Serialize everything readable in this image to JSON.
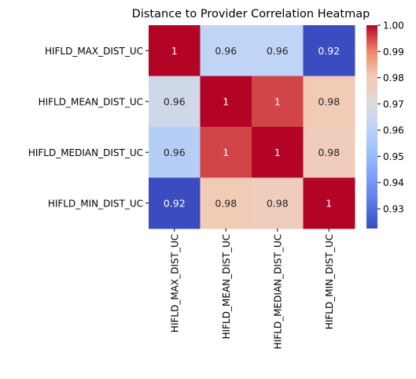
{
  "chart_data": {
    "type": "heatmap",
    "title": "Distance to Provider Correlation Heatmap",
    "row_labels": [
      "HIFLD_MAX_DIST_UC",
      "HIFLD_MEAN_DIST_UC",
      "HIFLD_MEDIAN_DIST_UC",
      "HIFLD_MIN_DIST_UC"
    ],
    "col_labels": [
      "HIFLD_MAX_DIST_UC",
      "HIFLD_MEAN_DIST_UC",
      "HIFLD_MEDIAN_DIST_UC",
      "HIFLD_MIN_DIST_UC"
    ],
    "values": [
      [
        1.0,
        0.96,
        0.96,
        0.92
      ],
      [
        0.965,
        1.0,
        0.995,
        0.98
      ],
      [
        0.957,
        0.995,
        1.0,
        0.978
      ],
      [
        0.92,
        0.98,
        0.978,
        1.0
      ]
    ],
    "annotations": [
      [
        "1",
        "0.96",
        "0.96",
        "0.92"
      ],
      [
        "0.96",
        "1",
        "1",
        "0.98"
      ],
      [
        "0.96",
        "1",
        "1",
        "0.98"
      ],
      [
        "0.92",
        "0.98",
        "0.98",
        "1"
      ]
    ],
    "colormap": "coolwarm",
    "vmin": 0.92,
    "vmax": 1.0,
    "colorbar_ticks": [
      "1.00",
      "0.99",
      "0.98",
      "0.97",
      "0.96",
      "0.95",
      "0.94",
      "0.93"
    ],
    "colorbar_tick_values": [
      1.0,
      0.99,
      0.98,
      0.97,
      0.96,
      0.95,
      0.94,
      0.93
    ],
    "annotation_colors": {
      "dark_text": "#262626",
      "light_text": "#ffffff"
    }
  }
}
